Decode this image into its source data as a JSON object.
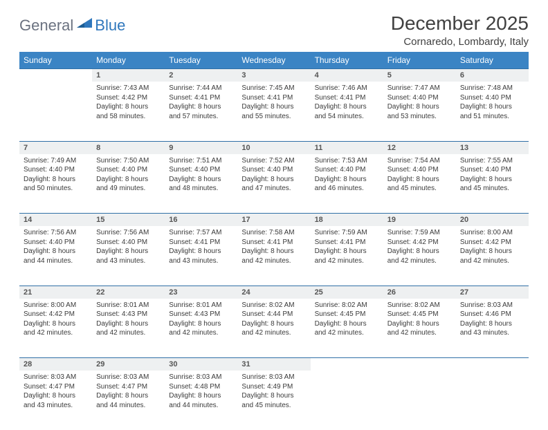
{
  "logo": {
    "word1": "General",
    "word2": "Blue"
  },
  "title": "December 2025",
  "location": "Cornaredo, Lombardy, Italy",
  "colors": {
    "header_bg": "#3b84c4",
    "daynum_bg": "#eef0f1",
    "row_border": "#2f6fa6",
    "logo_gray": "#6b7280",
    "logo_blue": "#2f77bc"
  },
  "weekdays": [
    "Sunday",
    "Monday",
    "Tuesday",
    "Wednesday",
    "Thursday",
    "Friday",
    "Saturday"
  ],
  "weeks": [
    {
      "nums": [
        "",
        "1",
        "2",
        "3",
        "4",
        "5",
        "6"
      ],
      "cells": [
        null,
        {
          "sunrise": "Sunrise: 7:43 AM",
          "sunset": "Sunset: 4:42 PM",
          "day1": "Daylight: 8 hours",
          "day2": "and 58 minutes."
        },
        {
          "sunrise": "Sunrise: 7:44 AM",
          "sunset": "Sunset: 4:41 PM",
          "day1": "Daylight: 8 hours",
          "day2": "and 57 minutes."
        },
        {
          "sunrise": "Sunrise: 7:45 AM",
          "sunset": "Sunset: 4:41 PM",
          "day1": "Daylight: 8 hours",
          "day2": "and 55 minutes."
        },
        {
          "sunrise": "Sunrise: 7:46 AM",
          "sunset": "Sunset: 4:41 PM",
          "day1": "Daylight: 8 hours",
          "day2": "and 54 minutes."
        },
        {
          "sunrise": "Sunrise: 7:47 AM",
          "sunset": "Sunset: 4:40 PM",
          "day1": "Daylight: 8 hours",
          "day2": "and 53 minutes."
        },
        {
          "sunrise": "Sunrise: 7:48 AM",
          "sunset": "Sunset: 4:40 PM",
          "day1": "Daylight: 8 hours",
          "day2": "and 51 minutes."
        }
      ]
    },
    {
      "nums": [
        "7",
        "8",
        "9",
        "10",
        "11",
        "12",
        "13"
      ],
      "cells": [
        {
          "sunrise": "Sunrise: 7:49 AM",
          "sunset": "Sunset: 4:40 PM",
          "day1": "Daylight: 8 hours",
          "day2": "and 50 minutes."
        },
        {
          "sunrise": "Sunrise: 7:50 AM",
          "sunset": "Sunset: 4:40 PM",
          "day1": "Daylight: 8 hours",
          "day2": "and 49 minutes."
        },
        {
          "sunrise": "Sunrise: 7:51 AM",
          "sunset": "Sunset: 4:40 PM",
          "day1": "Daylight: 8 hours",
          "day2": "and 48 minutes."
        },
        {
          "sunrise": "Sunrise: 7:52 AM",
          "sunset": "Sunset: 4:40 PM",
          "day1": "Daylight: 8 hours",
          "day2": "and 47 minutes."
        },
        {
          "sunrise": "Sunrise: 7:53 AM",
          "sunset": "Sunset: 4:40 PM",
          "day1": "Daylight: 8 hours",
          "day2": "and 46 minutes."
        },
        {
          "sunrise": "Sunrise: 7:54 AM",
          "sunset": "Sunset: 4:40 PM",
          "day1": "Daylight: 8 hours",
          "day2": "and 45 minutes."
        },
        {
          "sunrise": "Sunrise: 7:55 AM",
          "sunset": "Sunset: 4:40 PM",
          "day1": "Daylight: 8 hours",
          "day2": "and 45 minutes."
        }
      ]
    },
    {
      "nums": [
        "14",
        "15",
        "16",
        "17",
        "18",
        "19",
        "20"
      ],
      "cells": [
        {
          "sunrise": "Sunrise: 7:56 AM",
          "sunset": "Sunset: 4:40 PM",
          "day1": "Daylight: 8 hours",
          "day2": "and 44 minutes."
        },
        {
          "sunrise": "Sunrise: 7:56 AM",
          "sunset": "Sunset: 4:40 PM",
          "day1": "Daylight: 8 hours",
          "day2": "and 43 minutes."
        },
        {
          "sunrise": "Sunrise: 7:57 AM",
          "sunset": "Sunset: 4:41 PM",
          "day1": "Daylight: 8 hours",
          "day2": "and 43 minutes."
        },
        {
          "sunrise": "Sunrise: 7:58 AM",
          "sunset": "Sunset: 4:41 PM",
          "day1": "Daylight: 8 hours",
          "day2": "and 42 minutes."
        },
        {
          "sunrise": "Sunrise: 7:59 AM",
          "sunset": "Sunset: 4:41 PM",
          "day1": "Daylight: 8 hours",
          "day2": "and 42 minutes."
        },
        {
          "sunrise": "Sunrise: 7:59 AM",
          "sunset": "Sunset: 4:42 PM",
          "day1": "Daylight: 8 hours",
          "day2": "and 42 minutes."
        },
        {
          "sunrise": "Sunrise: 8:00 AM",
          "sunset": "Sunset: 4:42 PM",
          "day1": "Daylight: 8 hours",
          "day2": "and 42 minutes."
        }
      ]
    },
    {
      "nums": [
        "21",
        "22",
        "23",
        "24",
        "25",
        "26",
        "27"
      ],
      "cells": [
        {
          "sunrise": "Sunrise: 8:00 AM",
          "sunset": "Sunset: 4:42 PM",
          "day1": "Daylight: 8 hours",
          "day2": "and 42 minutes."
        },
        {
          "sunrise": "Sunrise: 8:01 AM",
          "sunset": "Sunset: 4:43 PM",
          "day1": "Daylight: 8 hours",
          "day2": "and 42 minutes."
        },
        {
          "sunrise": "Sunrise: 8:01 AM",
          "sunset": "Sunset: 4:43 PM",
          "day1": "Daylight: 8 hours",
          "day2": "and 42 minutes."
        },
        {
          "sunrise": "Sunrise: 8:02 AM",
          "sunset": "Sunset: 4:44 PM",
          "day1": "Daylight: 8 hours",
          "day2": "and 42 minutes."
        },
        {
          "sunrise": "Sunrise: 8:02 AM",
          "sunset": "Sunset: 4:45 PM",
          "day1": "Daylight: 8 hours",
          "day2": "and 42 minutes."
        },
        {
          "sunrise": "Sunrise: 8:02 AM",
          "sunset": "Sunset: 4:45 PM",
          "day1": "Daylight: 8 hours",
          "day2": "and 42 minutes."
        },
        {
          "sunrise": "Sunrise: 8:03 AM",
          "sunset": "Sunset: 4:46 PM",
          "day1": "Daylight: 8 hours",
          "day2": "and 43 minutes."
        }
      ]
    },
    {
      "nums": [
        "28",
        "29",
        "30",
        "31",
        "",
        "",
        ""
      ],
      "cells": [
        {
          "sunrise": "Sunrise: 8:03 AM",
          "sunset": "Sunset: 4:47 PM",
          "day1": "Daylight: 8 hours",
          "day2": "and 43 minutes."
        },
        {
          "sunrise": "Sunrise: 8:03 AM",
          "sunset": "Sunset: 4:47 PM",
          "day1": "Daylight: 8 hours",
          "day2": "and 44 minutes."
        },
        {
          "sunrise": "Sunrise: 8:03 AM",
          "sunset": "Sunset: 4:48 PM",
          "day1": "Daylight: 8 hours",
          "day2": "and 44 minutes."
        },
        {
          "sunrise": "Sunrise: 8:03 AM",
          "sunset": "Sunset: 4:49 PM",
          "day1": "Daylight: 8 hours",
          "day2": "and 45 minutes."
        },
        null,
        null,
        null
      ]
    }
  ]
}
